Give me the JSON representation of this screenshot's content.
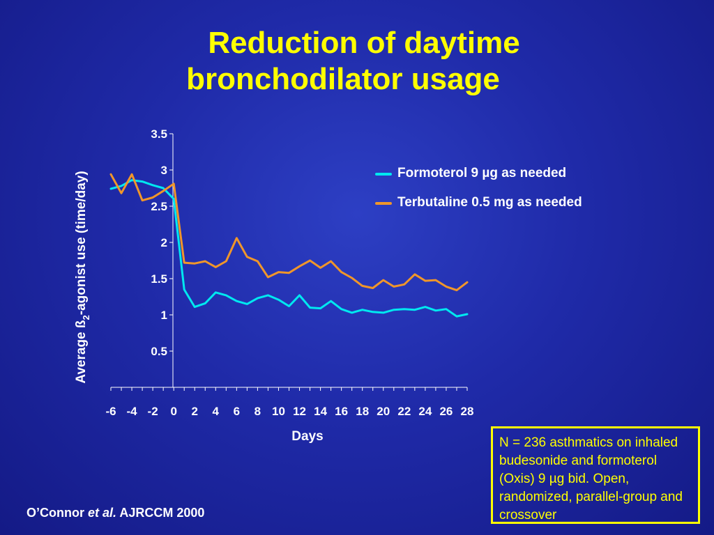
{
  "slide": {
    "title_line1": "Reduction of daytime",
    "title_line2": "bronchodilator usage",
    "citation_author": "O’Connor",
    "citation_etal": "et al.",
    "citation_journal": "AJRCCM 2000",
    "info_box": "N = 236  asthmatics on inhaled budesonide and formoterol (Oxis) 9 µg bid. Open, randomized, parallel-group and crossover"
  },
  "colors": {
    "title": "#ffff00",
    "axis_text": "#ffffff",
    "formoterol": "#00e8f0",
    "terbutaline": "#f0962a",
    "info_box": "#ffff00"
  },
  "chart_data": {
    "type": "line",
    "xlabel": "Days",
    "ylabel_prefix": "Average ß",
    "ylabel_sub": "2",
    "ylabel_suffix": "-agonist use (time/day)",
    "ylim": [
      0,
      3.5
    ],
    "xlim": [
      -6,
      28
    ],
    "yticks": [
      0.5,
      1,
      1.5,
      2,
      2.5,
      3,
      3.5
    ],
    "ytick_labels": [
      "0.5",
      "1",
      "1.5",
      "2",
      "2.5",
      "3",
      "3.5"
    ],
    "xticks": [
      -6,
      -4,
      -2,
      0,
      2,
      4,
      6,
      8,
      10,
      12,
      14,
      16,
      18,
      20,
      22,
      24,
      26,
      28
    ],
    "xtick_labels": [
      "-6",
      "-4",
      "-2",
      "0",
      "2",
      "4",
      "6",
      "8",
      "10",
      "12",
      "14",
      "16",
      "18",
      "20",
      "22",
      "24",
      "26",
      "28"
    ],
    "grid": false,
    "legend_position": "top-right",
    "series": [
      {
        "name": "Formoterol 9 µg as needed",
        "x": [
          -6,
          -5,
          -4,
          -3,
          -2,
          -1,
          0,
          1,
          2,
          3,
          4,
          5,
          6,
          7,
          8,
          9,
          10,
          11,
          12,
          13,
          14,
          15,
          16,
          17,
          18,
          19,
          20,
          21,
          22,
          23,
          24,
          25,
          26,
          27,
          28
        ],
        "values": [
          2.74,
          2.78,
          2.86,
          2.84,
          2.79,
          2.75,
          2.6,
          1.35,
          1.11,
          1.16,
          1.31,
          1.27,
          1.19,
          1.15,
          1.23,
          1.27,
          1.21,
          1.12,
          1.27,
          1.1,
          1.09,
          1.19,
          1.08,
          1.03,
          1.07,
          1.04,
          1.03,
          1.07,
          1.08,
          1.07,
          1.11,
          1.06,
          1.08,
          0.98,
          1.01
        ]
      },
      {
        "name": "Terbutaline 0.5 mg as needed",
        "x": [
          -6,
          -5,
          -4,
          -3,
          -2,
          -1,
          0,
          1,
          2,
          3,
          4,
          5,
          6,
          7,
          8,
          9,
          10,
          11,
          12,
          13,
          14,
          15,
          16,
          17,
          18,
          19,
          20,
          21,
          22,
          23,
          24,
          25,
          26,
          27,
          28
        ],
        "values": [
          2.94,
          2.68,
          2.94,
          2.58,
          2.62,
          2.71,
          2.81,
          1.72,
          1.71,
          1.74,
          1.66,
          1.74,
          2.06,
          1.8,
          1.74,
          1.52,
          1.59,
          1.58,
          1.67,
          1.75,
          1.65,
          1.74,
          1.59,
          1.51,
          1.4,
          1.37,
          1.48,
          1.39,
          1.42,
          1.56,
          1.47,
          1.48,
          1.39,
          1.34,
          1.45
        ]
      }
    ]
  }
}
